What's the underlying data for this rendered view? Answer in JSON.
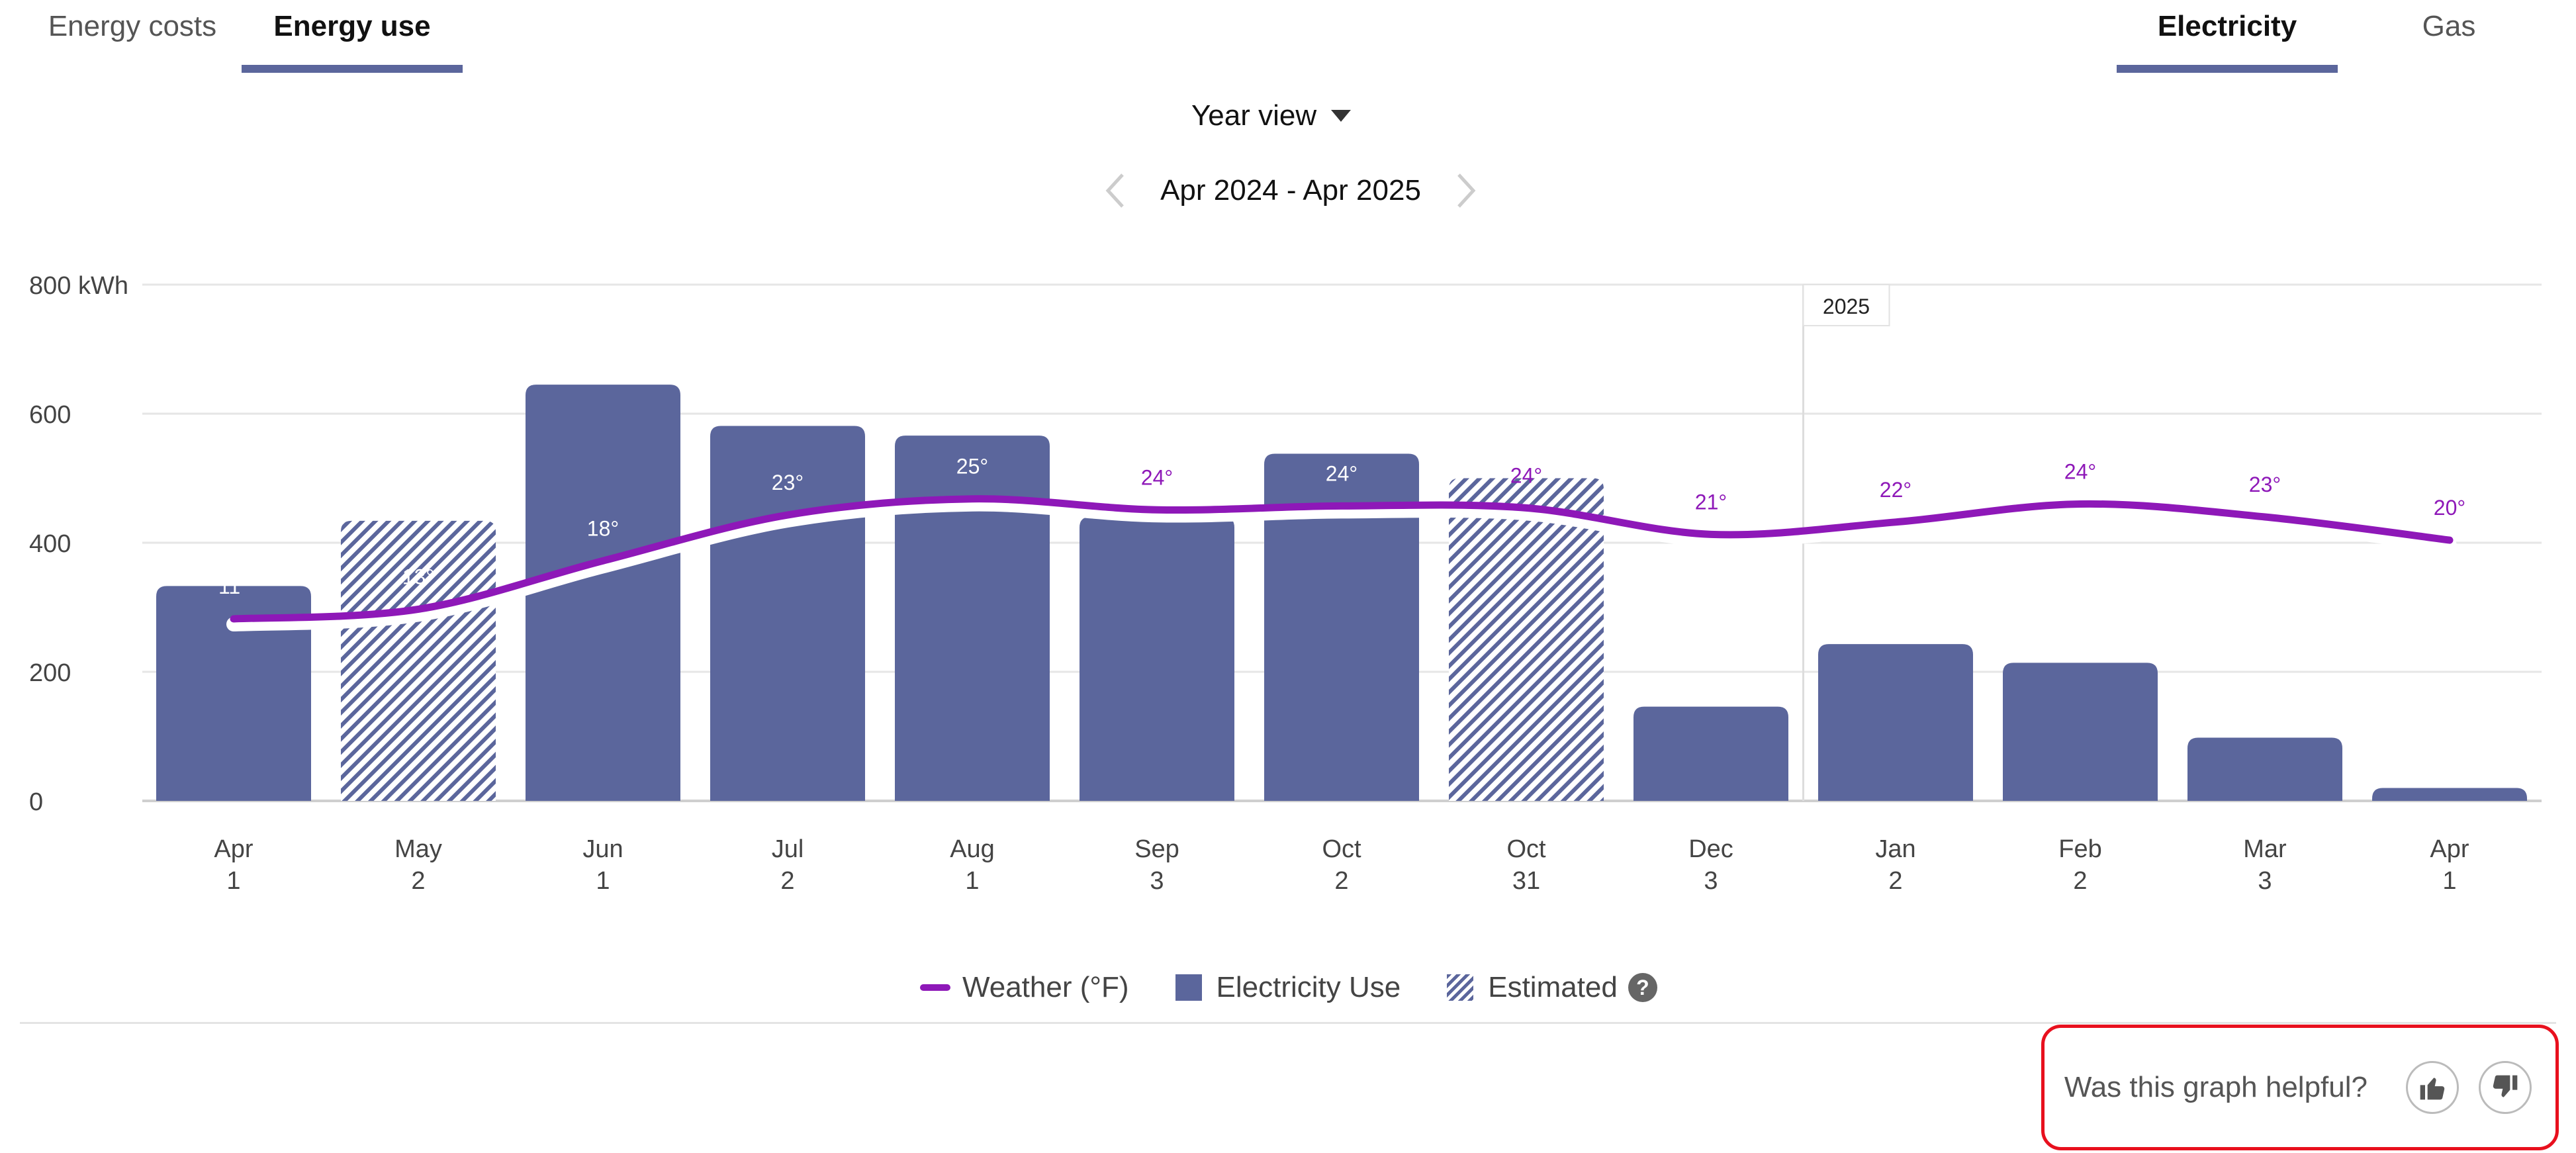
{
  "tabs": {
    "left": [
      {
        "label": "Energy costs",
        "active": false
      },
      {
        "label": "Energy use",
        "active": true
      }
    ],
    "right": [
      {
        "label": "Electricity",
        "active": true
      },
      {
        "label": "Gas",
        "active": false
      }
    ]
  },
  "view": {
    "label": "Year view",
    "period": "Apr 2024 - Apr 2025"
  },
  "chart_data": {
    "type": "bar",
    "title": "",
    "ylabel": "kWh",
    "y_ticks": [
      "800 kWh",
      "600",
      "400",
      "200",
      "0"
    ],
    "ylim": [
      0,
      800
    ],
    "categories": [
      {
        "month": "Apr",
        "day": "1"
      },
      {
        "month": "May",
        "day": "2"
      },
      {
        "month": "Jun",
        "day": "1"
      },
      {
        "month": "Jul",
        "day": "2"
      },
      {
        "month": "Aug",
        "day": "1"
      },
      {
        "month": "Sep",
        "day": "3"
      },
      {
        "month": "Oct",
        "day": "2"
      },
      {
        "month": "Oct",
        "day": "31"
      },
      {
        "month": "Dec",
        "day": "3"
      },
      {
        "month": "Jan",
        "day": "2"
      },
      {
        "month": "Feb",
        "day": "2"
      },
      {
        "month": "Mar",
        "day": "3"
      },
      {
        "month": "Apr",
        "day": "1"
      }
    ],
    "series": [
      {
        "name": "Electricity Use",
        "color": "#5b669c",
        "values": [
          333,
          434,
          645,
          581,
          566,
          440,
          538,
          500,
          146,
          243,
          214,
          98,
          20
        ],
        "estimated": [
          false,
          true,
          false,
          false,
          false,
          false,
          false,
          true,
          false,
          false,
          false,
          false,
          false
        ]
      },
      {
        "name": "Weather (°F)",
        "color": "#8e18b8",
        "unit": "°",
        "temps": [
          11,
          13,
          18,
          23,
          25,
          24,
          24,
          24,
          21,
          22,
          24,
          23,
          20
        ],
        "line_kwh": [
          282,
          297,
          372,
          443,
          468,
          451,
          457,
          454,
          413,
          432,
          460,
          440,
          404
        ]
      }
    ],
    "year_marker": {
      "label": "2025",
      "before_index": 9
    },
    "legend": [
      "Weather (°F)",
      "Electricity Use",
      "Estimated"
    ],
    "legend_help": "?"
  },
  "feedback": {
    "question": "Was this graph helpful?"
  }
}
